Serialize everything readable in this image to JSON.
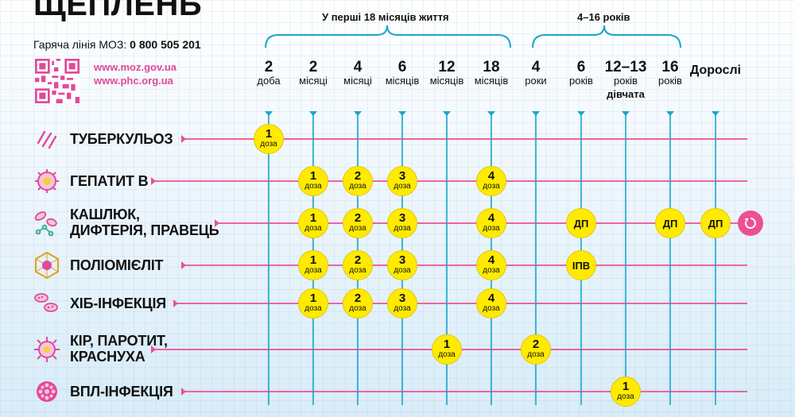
{
  "header": {
    "title": "ЩЕПЛЕНЬ",
    "hotline_label": "Гаряча лінія МОЗ:",
    "hotline_number": "0 800 505 201",
    "url1": "www.moz.gov.ua",
    "url2": "www.phc.org.ua"
  },
  "ranges": [
    {
      "label": "У перші 18 місяців життя"
    },
    {
      "label": "4–16 років"
    }
  ],
  "columns": [
    {
      "n": "2",
      "u": "доба",
      "u2": ""
    },
    {
      "n": "2",
      "u": "місяці",
      "u2": ""
    },
    {
      "n": "4",
      "u": "місяці",
      "u2": ""
    },
    {
      "n": "6",
      "u": "місяців",
      "u2": ""
    },
    {
      "n": "12",
      "u": "місяців",
      "u2": ""
    },
    {
      "n": "18",
      "u": "місяців",
      "u2": ""
    },
    {
      "n": "4",
      "u": "роки",
      "u2": ""
    },
    {
      "n": "6",
      "u": "років",
      "u2": ""
    },
    {
      "n": "12–13",
      "u": "років",
      "u2": "дівчата"
    },
    {
      "n": "16",
      "u": "років",
      "u2": ""
    },
    {
      "n": "Дорослі",
      "u": "",
      "u2": ""
    }
  ],
  "rows": [
    {
      "l1": "ТУБЕРКУЛЬОЗ",
      "l2": "",
      "icon": "tuberculosis-icon",
      "doses": [
        {
          "col": 0,
          "n": "1",
          "u": "доза"
        }
      ]
    },
    {
      "l1": "ГЕПАТИТ В",
      "l2": "",
      "icon": "hepatitis-icon",
      "doses": [
        {
          "col": 1,
          "n": "1",
          "u": "доза"
        },
        {
          "col": 2,
          "n": "2",
          "u": "доза"
        },
        {
          "col": 3,
          "n": "3",
          "u": "доза"
        },
        {
          "col": 5,
          "n": "4",
          "u": "доза"
        }
      ]
    },
    {
      "l1": "КАШЛЮК,",
      "l2": "ДИФТЕРІЯ, ПРАВЕЦЬ",
      "icon": "pertussis-icon",
      "doses": [
        {
          "col": 1,
          "n": "1",
          "u": "доза"
        },
        {
          "col": 2,
          "n": "2",
          "u": "доза"
        },
        {
          "col": 3,
          "n": "3",
          "u": "доза"
        },
        {
          "col": 5,
          "n": "4",
          "u": "доза"
        },
        {
          "col": 7,
          "t": "ДП"
        },
        {
          "col": 9,
          "t": "ДП"
        },
        {
          "col": 10,
          "t": "ДП"
        }
      ]
    },
    {
      "l1": "ПОЛІОМІЄЛІТ",
      "l2": "",
      "icon": "polio-icon",
      "doses": [
        {
          "col": 1,
          "n": "1",
          "u": "доза"
        },
        {
          "col": 2,
          "n": "2",
          "u": "доза"
        },
        {
          "col": 3,
          "n": "3",
          "u": "доза"
        },
        {
          "col": 5,
          "n": "4",
          "u": "доза"
        },
        {
          "col": 7,
          "t": "ІПВ"
        }
      ]
    },
    {
      "l1": "ХІБ-ІНФЕКЦІЯ",
      "l2": "",
      "icon": "hib-icon",
      "doses": [
        {
          "col": 1,
          "n": "1",
          "u": "доза"
        },
        {
          "col": 2,
          "n": "2",
          "u": "доза"
        },
        {
          "col": 3,
          "n": "3",
          "u": "доза"
        },
        {
          "col": 5,
          "n": "4",
          "u": "доза"
        }
      ]
    },
    {
      "l1": "КІР, ПАРОТИТ,",
      "l2": "КРАСНУХА",
      "icon": "measles-icon",
      "doses": [
        {
          "col": 4,
          "n": "1",
          "u": "доза"
        },
        {
          "col": 6,
          "n": "2",
          "u": "доза"
        }
      ]
    },
    {
      "l1": "ВПЛ-ІНФЕКЦІЯ",
      "l2": "",
      "icon": "hpv-icon",
      "doses": [
        {
          "col": 8,
          "n": "1",
          "u": "доза"
        }
      ]
    }
  ],
  "colors": {
    "accent": "#ee4f94",
    "line": "#1aa6c8",
    "dose": "#ffea00"
  }
}
